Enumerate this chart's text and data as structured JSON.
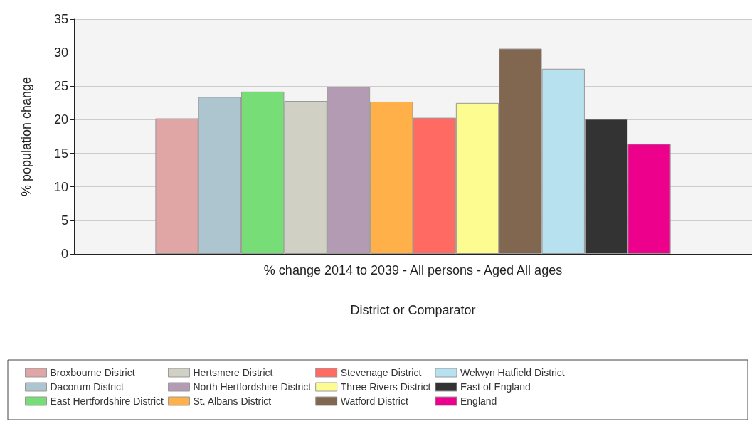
{
  "chart_data": {
    "type": "bar",
    "xlabel": "District or Comparator",
    "ylabel": "% population change",
    "categories": [
      "% change 2014 to 2039 - All persons - Aged All ages"
    ],
    "series": [
      {
        "name": "Broxbourne District",
        "color": "#e0a5a5",
        "values": [
          20.2
        ]
      },
      {
        "name": "Dacorum District",
        "color": "#adc5cf",
        "values": [
          23.4
        ]
      },
      {
        "name": "East Hertfordshire District",
        "color": "#77de77",
        "values": [
          24.2
        ]
      },
      {
        "name": "Hertsmere District",
        "color": "#d0d0c4",
        "values": [
          22.8
        ]
      },
      {
        "name": "North Hertfordshire District",
        "color": "#b39cb3",
        "values": [
          24.9
        ]
      },
      {
        "name": "St. Albans District",
        "color": "#ffb048",
        "values": [
          22.7
        ]
      },
      {
        "name": "Stevenage District",
        "color": "#ff6a62",
        "values": [
          20.3
        ]
      },
      {
        "name": "Three Rivers District",
        "color": "#fdfc90",
        "values": [
          22.5
        ]
      },
      {
        "name": "Watford District",
        "color": "#816650",
        "values": [
          30.6
        ]
      },
      {
        "name": "Welwyn Hatfield District",
        "color": "#b7e1ef",
        "values": [
          27.6
        ]
      },
      {
        "name": "East of England",
        "color": "#333333",
        "values": [
          20.1
        ]
      },
      {
        "name": "England",
        "color": "#ec008c",
        "values": [
          16.4
        ]
      }
    ],
    "ylim": [
      0,
      35
    ],
    "yticks": [
      0,
      5,
      10,
      15,
      20,
      25,
      30,
      35
    ],
    "grid": "y",
    "legend": "bottom"
  }
}
